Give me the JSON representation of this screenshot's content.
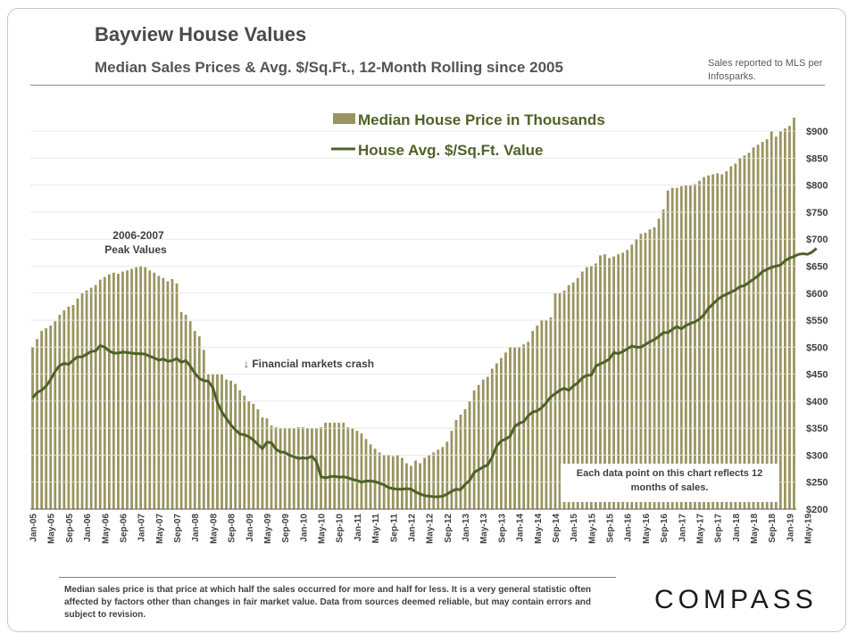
{
  "header": {
    "title": "Bayview House Values",
    "subtitle": "Median Sales Prices & Avg. $/Sq.Ft., 12-Month Rolling since 2005",
    "source": "Sales reported to MLS per Infosparks."
  },
  "annotations": {
    "peak": "2006-2007 Peak Values",
    "crash": "↓ Financial markets crash",
    "note": "Each data point on this chart reflects 12 months of sales."
  },
  "footnote": "Median sales price is that price at which half the sales occurred for more and half for less. It is a very general statistic often affected by factors other than changes in fair market value. Data from sources deemed reliable, but may contain errors and subject to revision.",
  "logo": "COMPASS",
  "colors": {
    "bar": "#9a9460",
    "line": "#4f6228",
    "text": "#404040"
  },
  "chart_data": {
    "type": "bar",
    "title": "Bayview House Values",
    "ylim": [
      200,
      920
    ],
    "y_ticks": [
      "$200",
      "$250",
      "$300",
      "$350",
      "$400",
      "$450",
      "$500",
      "$550",
      "$600",
      "$650",
      "$700",
      "$750",
      "$800",
      "$850",
      "$900"
    ],
    "y_tick_values": [
      200,
      250,
      300,
      350,
      400,
      450,
      500,
      550,
      600,
      650,
      700,
      750,
      800,
      850,
      900
    ],
    "x_ticks": [
      "Jan-05",
      "May-05",
      "Sep-05",
      "Jan-06",
      "May-06",
      "Sep-06",
      "Jan-07",
      "May-07",
      "Sep-07",
      "Jan-08",
      "May-08",
      "Sep-08",
      "Jan-09",
      "May-09",
      "Sep-09",
      "Jan-10",
      "May-10",
      "Sep-10",
      "Jan-11",
      "May-11",
      "Sep-11",
      "Jan-12",
      "May-12",
      "Sep-12",
      "Jan-13",
      "May-13",
      "Sep-13",
      "Jan-14",
      "May-14",
      "Sep-14",
      "Jan-15",
      "May-15",
      "Sep-15",
      "Jan-16",
      "May-16",
      "Sep-16",
      "Jan-17",
      "May-17",
      "Sep-17",
      "Jan-18",
      "May-18",
      "Sep-18",
      "Jan-19",
      "May-19"
    ],
    "legend": {
      "placement": "top-center",
      "bar_label": "Median House Price in Thousands",
      "line_label": "House Avg. $/Sq.Ft. Value"
    },
    "series": [
      {
        "name": "Median House Price in Thousands",
        "type": "bar",
        "values": [
          500,
          515,
          530,
          535,
          540,
          548,
          560,
          568,
          575,
          578,
          590,
          600,
          605,
          610,
          615,
          625,
          630,
          635,
          638,
          636,
          640,
          642,
          645,
          648,
          650,
          648,
          642,
          638,
          632,
          628,
          622,
          626,
          618,
          565,
          560,
          548,
          530,
          520,
          495,
          450,
          450,
          450,
          450,
          440,
          438,
          432,
          420,
          410,
          400,
          395,
          385,
          370,
          368,
          355,
          352,
          350,
          350,
          350,
          350,
          352,
          352,
          350,
          350,
          350,
          352,
          360,
          360,
          360,
          360,
          360,
          352,
          350,
          345,
          340,
          330,
          320,
          312,
          305,
          300,
          300,
          298,
          300,
          295,
          285,
          280,
          290,
          285,
          295,
          300,
          305,
          310,
          315,
          325,
          345,
          365,
          375,
          385,
          400,
          420,
          430,
          440,
          445,
          460,
          470,
          480,
          490,
          500,
          500,
          500,
          505,
          510,
          530,
          540,
          550,
          550,
          555,
          600,
          600,
          605,
          615,
          620,
          628,
          640,
          648,
          650,
          655,
          670,
          672,
          665,
          668,
          672,
          675,
          680,
          690,
          700,
          710,
          712,
          718,
          722,
          738,
          755,
          790,
          795,
          795,
          798,
          800,
          800,
          802,
          808,
          815,
          818,
          820,
          822,
          820,
          826,
          835,
          840,
          850,
          855,
          860,
          870,
          875,
          880,
          885,
          900,
          890,
          900,
          905,
          910,
          925
        ]
      },
      {
        "name": "House Avg. $/Sq.Ft. Value",
        "type": "line",
        "values": [
          406,
          416,
          420,
          428,
          440,
          455,
          466,
          470,
          468,
          476,
          482,
          482,
          487,
          492,
          493,
          503,
          500,
          493,
          489,
          489,
          491,
          490,
          489,
          488,
          488,
          487,
          483,
          480,
          476,
          478,
          474,
          475,
          479,
          472,
          475,
          465,
          452,
          442,
          438,
          437,
          425,
          398,
          380,
          368,
          356,
          347,
          339,
          338,
          334,
          328,
          320,
          312,
          324,
          323,
          311,
          306,
          305,
          300,
          297,
          294,
          295,
          294,
          298,
          288,
          260,
          258,
          260,
          261,
          259,
          260,
          258,
          255,
          253,
          250,
          252,
          252,
          251,
          248,
          245,
          240,
          238,
          237,
          237,
          238,
          237,
          232,
          228,
          225,
          224,
          223,
          223,
          224,
          228,
          233,
          237,
          236,
          246,
          253,
          268,
          273,
          278,
          282,
          296,
          317,
          326,
          330,
          335,
          353,
          359,
          362,
          373,
          380,
          382,
          388,
          397,
          408,
          414,
          420,
          424,
          420,
          428,
          434,
          443,
          448,
          448,
          465,
          469,
          473,
          478,
          490,
          488,
          492,
          497,
          502,
          500,
          500,
          505,
          510,
          514,
          520,
          527,
          527,
          533,
          538,
          534,
          540,
          544,
          547,
          552,
          560,
          572,
          580,
          588,
          594,
          598,
          602,
          606,
          612,
          614,
          620,
          626,
          632,
          640,
          644,
          648,
          650,
          652,
          660,
          665,
          668,
          672,
          673,
          672,
          676,
          683
        ]
      }
    ]
  }
}
